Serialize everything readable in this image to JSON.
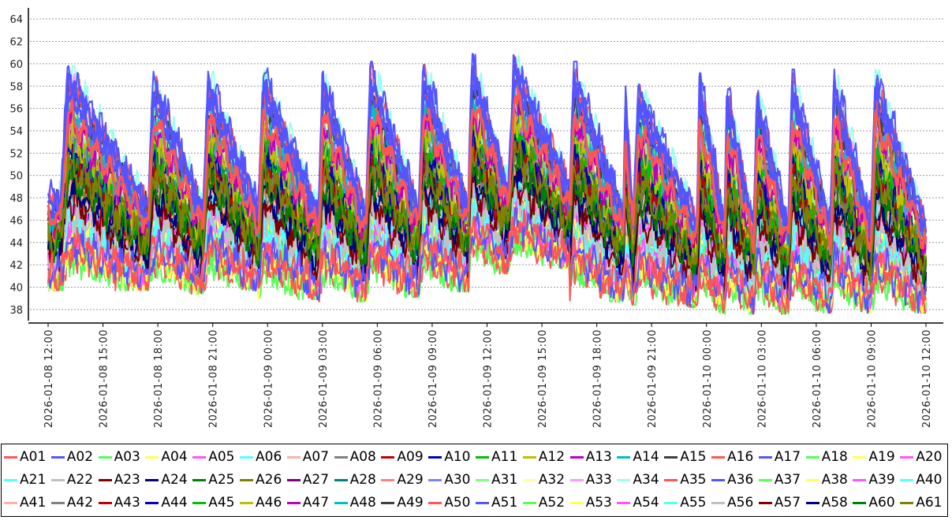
{
  "chart_data": {
    "type": "line",
    "title": "",
    "xlabel": "",
    "ylabel": "",
    "ylim": [
      37,
      65
    ],
    "yticks": [
      38,
      40,
      42,
      44,
      46,
      48,
      50,
      52,
      54,
      56,
      58,
      60,
      62,
      64
    ],
    "x_start_hours": 0,
    "x_end_hours": 48,
    "xtick_labels": [
      "2026-01-08 12:00",
      "2026-01-08 15:00",
      "2026-01-08 18:00",
      "2026-01-08 21:00",
      "2026-01-09 00:00",
      "2026-01-09 03:00",
      "2026-01-09 06:00",
      "2026-01-09 09:00",
      "2026-01-09 12:00",
      "2026-01-09 15:00",
      "2026-01-09 18:00",
      "2026-01-09 21:00",
      "2026-01-10 00:00",
      "2026-01-10 03:00",
      "2026-01-10 06:00",
      "2026-01-10 09:00",
      "2026-01-10 12:00"
    ],
    "cycle_start_hours": [
      0.7,
      5.5,
      8.5,
      11.5,
      14.8,
      17.4,
      20.3,
      23.0,
      25.2,
      28.5,
      31.5,
      32.0,
      35.5,
      37.0,
      38.6,
      40.5,
      42.8,
      45.0,
      48.0
    ],
    "cycle_peak_values": {
      "upper_envelope": [
        59.3,
        58.8,
        58.8,
        59.2,
        59.0,
        59.7,
        59.6,
        60.4,
        60.3,
        59.7,
        58.3,
        57.8,
        59.0,
        57.8,
        57.6,
        59.0
      ],
      "lower_envelope": [
        40.0,
        39.7,
        40.0,
        39.2,
        39.0,
        39.4,
        39.9,
        41.5,
        42.0,
        39.0,
        38.7,
        38.5,
        38.0,
        37.9,
        37.9,
        38.0
      ]
    },
    "series": [
      {
        "name": "A01",
        "color": "#ff5555"
      },
      {
        "name": "A02",
        "color": "#5555ff"
      },
      {
        "name": "A03",
        "color": "#55ff55"
      },
      {
        "name": "A04",
        "color": "#ffff55"
      },
      {
        "name": "A05",
        "color": "#ff55ff"
      },
      {
        "name": "A06",
        "color": "#55ffff"
      },
      {
        "name": "A07",
        "color": "#ffafaf"
      },
      {
        "name": "A08",
        "color": "#808080"
      },
      {
        "name": "A09",
        "color": "#c00000"
      },
      {
        "name": "A10",
        "color": "#0000c0"
      },
      {
        "name": "A11",
        "color": "#00c000"
      },
      {
        "name": "A12",
        "color": "#c0c000"
      },
      {
        "name": "A13",
        "color": "#c000c0"
      },
      {
        "name": "A14",
        "color": "#00c0c0"
      },
      {
        "name": "A15",
        "color": "#404040"
      },
      {
        "name": "A16",
        "color": "#ff5555"
      },
      {
        "name": "A17",
        "color": "#5555ff"
      },
      {
        "name": "A18",
        "color": "#55ff55"
      },
      {
        "name": "A19",
        "color": "#ffff55"
      },
      {
        "name": "A20",
        "color": "#ff55ff"
      },
      {
        "name": "A21",
        "color": "#55ffff"
      },
      {
        "name": "A22",
        "color": "#c0c0c0"
      },
      {
        "name": "A23",
        "color": "#800000"
      },
      {
        "name": "A24",
        "color": "#000080"
      },
      {
        "name": "A25",
        "color": "#008000"
      },
      {
        "name": "A26",
        "color": "#808000"
      },
      {
        "name": "A27",
        "color": "#800080"
      },
      {
        "name": "A28",
        "color": "#008080"
      },
      {
        "name": "A29",
        "color": "#ff8080"
      },
      {
        "name": "A30",
        "color": "#8080ff"
      },
      {
        "name": "A31",
        "color": "#80ff80"
      },
      {
        "name": "A32",
        "color": "#ffff99"
      },
      {
        "name": "A33",
        "color": "#ff99ff"
      },
      {
        "name": "A34",
        "color": "#99ffee"
      },
      {
        "name": "A35",
        "color": "#ff5555"
      },
      {
        "name": "A36",
        "color": "#5555ff"
      },
      {
        "name": "A37",
        "color": "#55ff55"
      },
      {
        "name": "A38",
        "color": "#ffff55"
      },
      {
        "name": "A39",
        "color": "#ff55ff"
      },
      {
        "name": "A40",
        "color": "#55ffff"
      },
      {
        "name": "A41",
        "color": "#ffafaf"
      },
      {
        "name": "A42",
        "color": "#808080"
      },
      {
        "name": "A43",
        "color": "#c00000"
      },
      {
        "name": "A44",
        "color": "#0000c0"
      },
      {
        "name": "A45",
        "color": "#00c000"
      },
      {
        "name": "A46",
        "color": "#c0c000"
      },
      {
        "name": "A47",
        "color": "#c000c0"
      },
      {
        "name": "A48",
        "color": "#00c0c0"
      },
      {
        "name": "A49",
        "color": "#404040"
      },
      {
        "name": "A50",
        "color": "#ff5555"
      },
      {
        "name": "A51",
        "color": "#5555ff"
      },
      {
        "name": "A52",
        "color": "#55ff55"
      },
      {
        "name": "A53",
        "color": "#ffff55"
      },
      {
        "name": "A54",
        "color": "#ff55ff"
      },
      {
        "name": "A55",
        "color": "#55ffff"
      },
      {
        "name": "A56",
        "color": "#c0c0c0"
      },
      {
        "name": "A57",
        "color": "#800000"
      },
      {
        "name": "A58",
        "color": "#000080"
      },
      {
        "name": "A60",
        "color": "#008000"
      },
      {
        "name": "A61",
        "color": "#808000"
      }
    ],
    "legend_position": "bottom",
    "grid": true
  }
}
